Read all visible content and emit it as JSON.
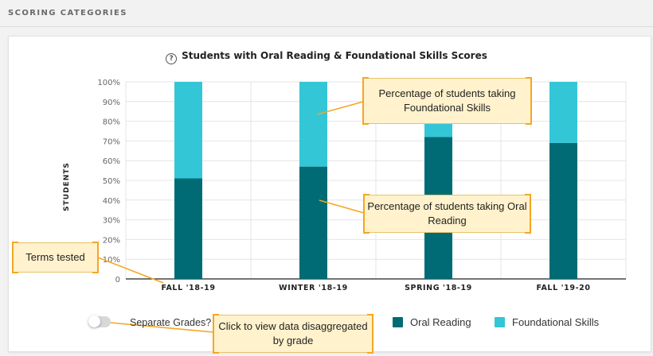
{
  "section": {
    "title": "SCORING CATEGORIES"
  },
  "chart": {
    "title": "Students with Oral Reading & Foundational Skills Scores",
    "help_icon": "question-circle-icon",
    "y_axis_label": "STUDENTS"
  },
  "chart_data": {
    "type": "bar",
    "stacked": true,
    "title": "Students with Oral Reading & Foundational Skills Scores",
    "ylabel": "STUDENTS",
    "xlabel": "",
    "ylim": [
      0,
      100
    ],
    "yticks": [
      "0",
      "10%",
      "20%",
      "30%",
      "40%",
      "50%",
      "60%",
      "70%",
      "80%",
      "90%",
      "100%"
    ],
    "categories": [
      "FALL '18-19",
      "WINTER '18-19",
      "SPRING '18-19",
      "FALL '19-20"
    ],
    "series": [
      {
        "name": "Oral Reading",
        "color": "#006b75",
        "values": [
          51,
          57,
          72,
          69
        ]
      },
      {
        "name": "Foundational Skills",
        "color": "#33c6d6",
        "values": [
          49,
          43,
          28,
          31
        ]
      }
    ],
    "grid": true,
    "legend": "bottom-right"
  },
  "callouts": {
    "foundational": "Percentage of students taking Foundational Skills",
    "oral": "Percentage of students taking Oral Reading",
    "terms": "Terms tested",
    "toggle": "Click to view data disaggregated by grade"
  },
  "controls": {
    "separate_grades_label": "Separate Grades?",
    "separate_grades_on": false
  },
  "legend": {
    "items": [
      {
        "label": "Oral Reading",
        "color": "#006b75"
      },
      {
        "label": "Foundational Skills",
        "color": "#33c6d6"
      }
    ]
  }
}
